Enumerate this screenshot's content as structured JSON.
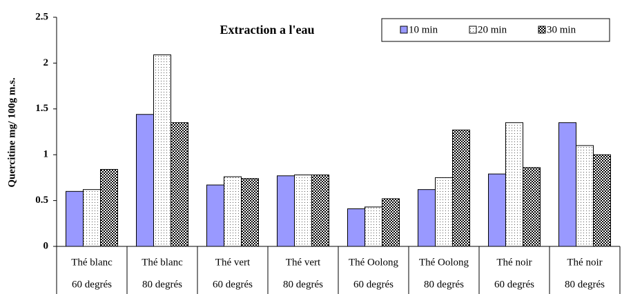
{
  "chart_data": {
    "type": "bar",
    "title": "Extraction a l'eau",
    "ylabel": "Quercitine mg/ 100g m.s.",
    "categories": [
      [
        "Thé blanc",
        "60 degrés"
      ],
      [
        "Thé blanc",
        "80 degrés"
      ],
      [
        "Thé vert",
        "60 degrés"
      ],
      [
        "Thé vert",
        "80 degrés"
      ],
      [
        "Thé Oolong",
        "60 degrés"
      ],
      [
        "Thé Oolong",
        "80 degrés"
      ],
      [
        "Thé noir",
        "60 degrés"
      ],
      [
        "Thé noir",
        "80 degrés"
      ]
    ],
    "series": [
      {
        "name": "10 min",
        "color": "#9999ff",
        "pattern": "solid",
        "values": [
          0.6,
          1.44,
          0.67,
          0.77,
          0.41,
          0.62,
          0.79,
          1.35
        ]
      },
      {
        "name": "20 min",
        "color": "#ffffff",
        "pattern": "dots",
        "values": [
          0.62,
          2.09,
          0.76,
          0.78,
          0.43,
          0.75,
          1.35,
          1.1
        ]
      },
      {
        "name": "30 min",
        "color": "#ffffff",
        "pattern": "checker",
        "values": [
          0.84,
          1.35,
          0.74,
          0.78,
          0.52,
          1.27,
          0.86,
          1.0
        ]
      }
    ],
    "ylim": [
      0,
      2.5
    ],
    "yticks": [
      0,
      0.5,
      1,
      1.5,
      2,
      2.5
    ],
    "legend": "top-right"
  }
}
